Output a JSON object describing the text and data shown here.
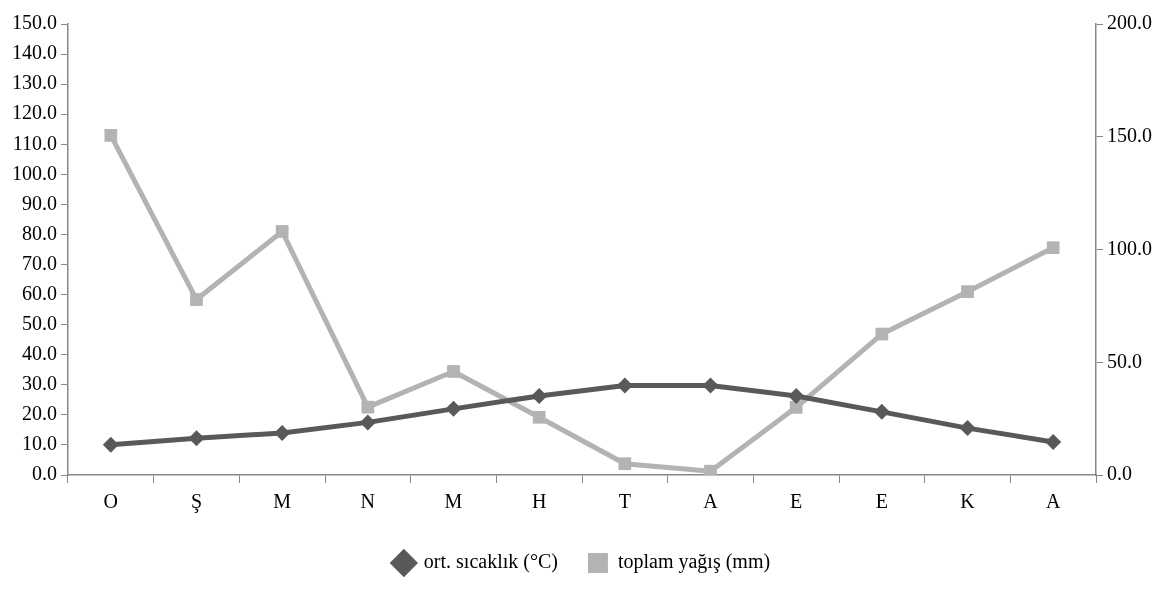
{
  "chart_data": {
    "type": "line",
    "categories": [
      "O",
      "Ş",
      "M",
      "N",
      "M",
      "H",
      "T",
      "A",
      "E",
      "E",
      "K",
      "A"
    ],
    "series": [
      {
        "name": "ort. sıcaklık (°C)",
        "color": "#595959",
        "marker": "diamond",
        "values": [
          10.1,
          12.2,
          14.0,
          17.5,
          22.0,
          26.3,
          29.8,
          29.8,
          26.3,
          21.0,
          15.6,
          11.0
        ]
      },
      {
        "name": "toplam yağış (mm)",
        "color": "#b3b3b3",
        "marker": "square",
        "axis": "y2",
        "values": [
          150.6,
          77.8,
          108.0,
          30.1,
          45.9,
          25.6,
          5.0,
          1.7,
          30.0,
          62.5,
          81.3,
          100.8
        ]
      }
    ],
    "ylim": [
      0,
      150
    ],
    "yticks": [
      {
        "value": 0,
        "label": "0.0"
      },
      {
        "value": 10,
        "label": "10.0"
      },
      {
        "value": 20,
        "label": "20.0"
      },
      {
        "value": 30,
        "label": "30.0"
      },
      {
        "value": 40,
        "label": "40.0"
      },
      {
        "value": 50,
        "label": "50.0"
      },
      {
        "value": 60,
        "label": "60.0"
      },
      {
        "value": 70,
        "label": "70.0"
      },
      {
        "value": 80,
        "label": "80.0"
      },
      {
        "value": 90,
        "label": "90.0"
      },
      {
        "value": 100,
        "label": "100.0"
      },
      {
        "value": 110,
        "label": "110.0"
      },
      {
        "value": 120,
        "label": "120.0"
      },
      {
        "value": 130,
        "label": "130.0"
      },
      {
        "value": 140,
        "label": "140.0"
      },
      {
        "value": 150,
        "label": "150.0"
      }
    ],
    "y2lim": [
      0,
      200
    ],
    "y2ticks": [
      {
        "value": 0,
        "label": "0.0"
      },
      {
        "value": 50,
        "label": "50.0"
      },
      {
        "value": 100,
        "label": "100.0"
      },
      {
        "value": 150,
        "label": "150.0"
      },
      {
        "value": 200,
        "label": "200.0"
      }
    ],
    "legend": "bottom",
    "line_style": "solid"
  }
}
